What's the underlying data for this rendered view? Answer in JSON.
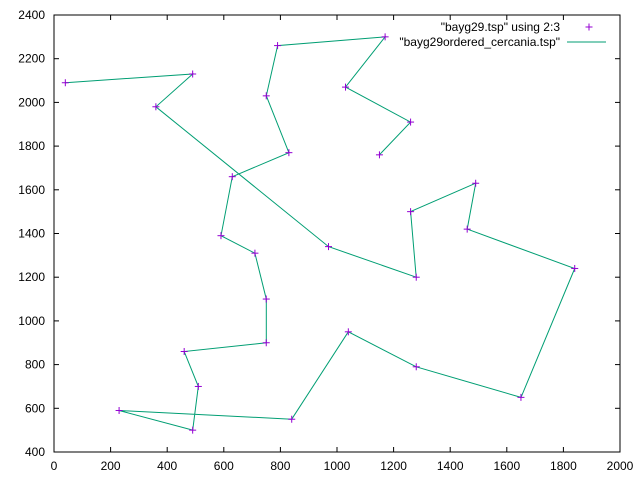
{
  "chart_data": {
    "type": "scatter",
    "title": "",
    "xlabel": "",
    "ylabel": "",
    "xlim": [
      0,
      2000
    ],
    "ylim": [
      400,
      2400
    ],
    "x_ticks": [
      0,
      200,
      400,
      600,
      800,
      1000,
      1200,
      1400,
      1600,
      1800,
      2000
    ],
    "y_ticks": [
      400,
      600,
      800,
      1000,
      1200,
      1400,
      1600,
      1800,
      2000,
      2200,
      2400
    ],
    "grid": false,
    "legend_position": "top-right",
    "series": [
      {
        "name": "\"bayg29.tsp\" using 2:3",
        "style": "points",
        "marker": "plus",
        "color": "#9400d3",
        "points": [
          [
            1150,
            1760
          ],
          [
            630,
            1660
          ],
          [
            40,
            2090
          ],
          [
            750,
            1100
          ],
          [
            750,
            2030
          ],
          [
            1030,
            2070
          ],
          [
            1650,
            650
          ],
          [
            1490,
            1630
          ],
          [
            790,
            2260
          ],
          [
            710,
            1310
          ],
          [
            840,
            550
          ],
          [
            1170,
            2300
          ],
          [
            970,
            1340
          ],
          [
            510,
            700
          ],
          [
            750,
            900
          ],
          [
            1280,
            1200
          ],
          [
            230,
            590
          ],
          [
            460,
            860
          ],
          [
            1040,
            950
          ],
          [
            590,
            1390
          ],
          [
            830,
            1770
          ],
          [
            490,
            500
          ],
          [
            1840,
            1240
          ],
          [
            1260,
            1500
          ],
          [
            1280,
            790
          ],
          [
            490,
            2130
          ],
          [
            1460,
            1420
          ],
          [
            1260,
            1910
          ],
          [
            360,
            1980
          ]
        ]
      },
      {
        "name": "\"bayg29ordered_cercania.tsp\"",
        "style": "lines",
        "color": "#009e73",
        "points": [
          [
            1150,
            1760
          ],
          [
            1260,
            1910
          ],
          [
            1030,
            2070
          ],
          [
            1170,
            2300
          ],
          [
            790,
            2260
          ],
          [
            750,
            2030
          ],
          [
            830,
            1770
          ],
          [
            630,
            1660
          ],
          [
            590,
            1390
          ],
          [
            710,
            1310
          ],
          [
            750,
            1100
          ],
          [
            750,
            900
          ],
          [
            460,
            860
          ],
          [
            510,
            700
          ],
          [
            490,
            500
          ],
          [
            230,
            590
          ],
          [
            840,
            550
          ],
          [
            1040,
            950
          ],
          [
            1280,
            790
          ],
          [
            1650,
            650
          ],
          [
            1840,
            1240
          ],
          [
            1460,
            1420
          ],
          [
            1490,
            1630
          ],
          [
            1260,
            1500
          ],
          [
            1280,
            1200
          ],
          [
            970,
            1340
          ],
          [
            360,
            1980
          ],
          [
            490,
            2130
          ],
          [
            40,
            2090
          ]
        ]
      }
    ]
  }
}
